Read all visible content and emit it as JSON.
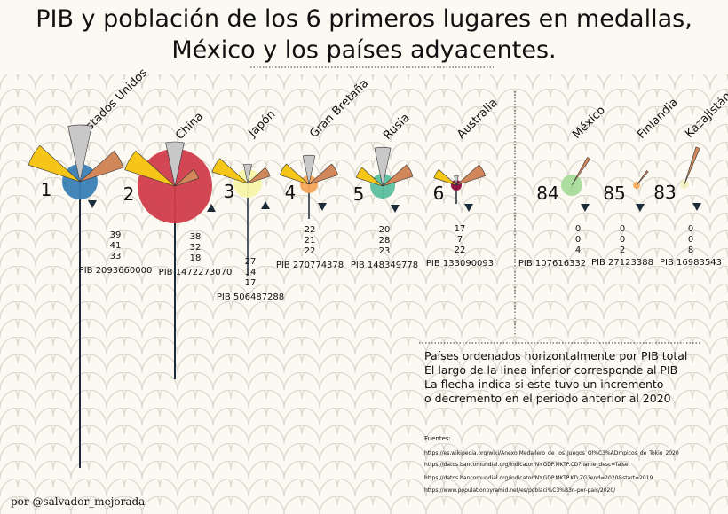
{
  "title": {
    "line1": "PIB y población de los 6 primeros lugares en medallas,",
    "line2": "México y los países adyacentes."
  },
  "chart_data": {
    "type": "other",
    "countries": [
      {
        "name": "Estados Unidos",
        "rank": "1",
        "gold": 39,
        "silver": 41,
        "bronze": 33,
        "pib": "PIB 2093660000",
        "trend": "down",
        "color": "#3a80b5"
      },
      {
        "name": "China",
        "rank": "2",
        "gold": 38,
        "silver": 32,
        "bronze": 18,
        "pib": "PIB 1472273070",
        "trend": "up",
        "color": "#d13c4b"
      },
      {
        "name": "Japón",
        "rank": "3",
        "gold": 27,
        "silver": 14,
        "bronze": 17,
        "pib": "PIB 506487288",
        "trend": "up",
        "color": "#f7f4a8"
      },
      {
        "name": "Gran Bretaña",
        "rank": "4",
        "gold": 22,
        "silver": 21,
        "bronze": 22,
        "pib": "PIB 270774378",
        "trend": "down",
        "color": "#f4a55a"
      },
      {
        "name": "Rusia",
        "rank": "5",
        "gold": 20,
        "silver": 28,
        "bronze": 23,
        "pib": "PIB 148349778",
        "trend": "down",
        "color": "#5cbf9f"
      },
      {
        "name": "Australia",
        "rank": "6",
        "gold": 17,
        "silver": 7,
        "bronze": 22,
        "pib": "PIB 133090093",
        "trend": "down",
        "color": "#8c0b3c"
      },
      {
        "name": "México",
        "rank": "84",
        "gold": 0,
        "silver": 0,
        "bronze": 4,
        "pib": "PIB 107616332",
        "trend": "down",
        "color": "#a8dc9a"
      },
      {
        "name": "Finlandia",
        "rank": "85",
        "gold": 0,
        "silver": 0,
        "bronze": 2,
        "pib": "PIB 27123388",
        "trend": "down",
        "color": "#f6ae62"
      },
      {
        "name": "Kazajistán",
        "rank": "83",
        "gold": 0,
        "silver": 0,
        "bronze": 8,
        "pib": "PIB 16983543",
        "trend": "down",
        "color": "#f2f2c0"
      }
    ],
    "medal_colors": {
      "gold": "#f5c518",
      "silver": "#c8c8c8",
      "bronze": "#d2875a"
    }
  },
  "notes": [
    "Países ordenados horizontalmente por PIB total",
    "El largo de la linea inferior corresponde al PIB",
    "La flecha indica si este tuvo un incremento",
    "o decremento en el periodo anterior al 2020"
  ],
  "sources": {
    "title": "Fuentes:",
    "items": [
      "https://es.wikipedia.org/wiki/Anexo:Medallero_de_los_Juegos_Ol%C3%ADmpicos_de_Tokio_2020",
      "https://datos.bancomundial.org/indicator/NY.GDP.MKTP.CD?name_desc=false",
      "https://datos.bancomundial.org/indicator/NY.GDP.MKTP.KD.ZG?end=2020&start=2019",
      "https://www.populationpyramid.net/es/poblaci%C3%B3n-por-pais/2020/"
    ]
  },
  "author": "por  @salvador_mejorada"
}
